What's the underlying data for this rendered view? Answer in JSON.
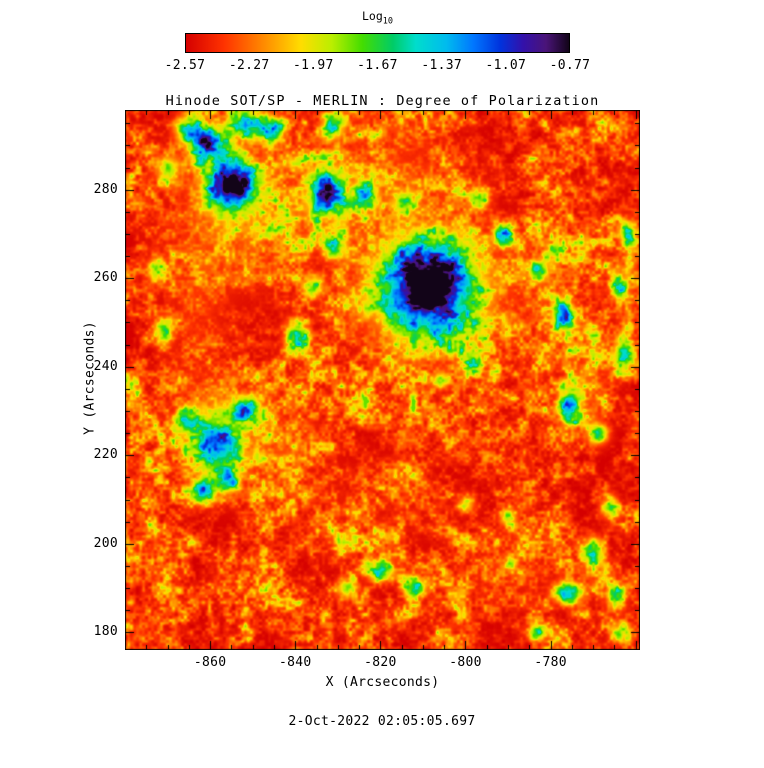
{
  "colorbar": {
    "label": "Log",
    "label_sub": "10",
    "ticks": [
      "-2.57",
      "-2.27",
      "-1.97",
      "-1.67",
      "-1.37",
      "-1.07",
      "-0.77"
    ]
  },
  "chart_data": {
    "type": "heatmap",
    "title": "Hinode SOT/SP - MERLIN : Degree of Polarization",
    "xlabel": "X (Arcseconds)",
    "ylabel": "Y (Arcseconds)",
    "xlim": [
      -880,
      -759
    ],
    "ylim": [
      176,
      298
    ],
    "x_major_ticks": [
      -860,
      -840,
      -820,
      -800,
      -780
    ],
    "y_major_ticks": [
      180,
      200,
      220,
      240,
      260,
      280
    ],
    "minor_tick_step": 5,
    "colorbar": {
      "title": "Log10",
      "range": [
        -2.57,
        -0.77
      ],
      "ticks": [
        -2.57,
        -2.27,
        -1.97,
        -1.67,
        -1.37,
        -1.07,
        -0.77
      ]
    },
    "value_note": "log10 degree of polarization: red = low (-2.57), dark purple/black = high (-0.77)",
    "colormap_stops": [
      [
        0.0,
        "#d50000"
      ],
      [
        0.1,
        "#ff3300"
      ],
      [
        0.2,
        "#ff8800"
      ],
      [
        0.3,
        "#ffdd00"
      ],
      [
        0.38,
        "#bbee00"
      ],
      [
        0.46,
        "#44dd00"
      ],
      [
        0.54,
        "#00cc66"
      ],
      [
        0.6,
        "#00ddcc"
      ],
      [
        0.68,
        "#00bbee"
      ],
      [
        0.75,
        "#0077ff"
      ],
      [
        0.82,
        "#0033dd"
      ],
      [
        0.88,
        "#3311aa"
      ],
      [
        0.94,
        "#4a1478"
      ],
      [
        1.0,
        "#120418"
      ]
    ],
    "features_format": [
      "x_arcsec",
      "y_arcsec",
      "rx_arcsec",
      "ry_arcsec",
      "strength"
    ],
    "features": [
      [
        -809,
        258,
        10.5,
        10,
        1.02
      ],
      [
        -809,
        257,
        14,
        13,
        0.32
      ],
      [
        -855,
        281,
        5,
        5.5,
        0.95
      ],
      [
        -856,
        282,
        8,
        8,
        0.28
      ],
      [
        -861,
        291,
        4.5,
        4,
        0.85
      ],
      [
        -852,
        295,
        4,
        3,
        0.55
      ],
      [
        -846,
        294,
        3.5,
        2.8,
        0.55
      ],
      [
        -833,
        279,
        3.2,
        4.2,
        0.88
      ],
      [
        -833,
        279,
        5.5,
        6.5,
        0.25
      ],
      [
        -831,
        295,
        3,
        3,
        0.6
      ],
      [
        -870,
        285,
        2.8,
        3.2,
        0.5
      ],
      [
        -866,
        294,
        3,
        3,
        0.5
      ],
      [
        -858,
        222,
        4.5,
        6.5,
        0.68
      ],
      [
        -852,
        230,
        3.5,
        3,
        0.55
      ],
      [
        -862,
        212,
        3,
        2.8,
        0.6
      ],
      [
        -866,
        228,
        2.5,
        3,
        0.5
      ],
      [
        -856,
        214,
        2.5,
        2.5,
        0.55
      ],
      [
        -859,
        224,
        8,
        11,
        0.2
      ],
      [
        -777,
        252,
        2.2,
        2.8,
        0.85
      ],
      [
        -776,
        231,
        2.6,
        3.4,
        0.78
      ],
      [
        -769,
        225,
        2.6,
        2.6,
        0.6
      ],
      [
        -763,
        243,
        2.2,
        4.5,
        0.55
      ],
      [
        -764,
        258,
        2.2,
        3,
        0.5
      ],
      [
        -772,
        236,
        6,
        9,
        0.16
      ],
      [
        -762,
        270,
        2,
        3,
        0.45
      ],
      [
        -820,
        194,
        3.5,
        2.6,
        0.5
      ],
      [
        -812,
        190,
        2.8,
        2.2,
        0.45
      ],
      [
        -828,
        190,
        2.5,
        2.2,
        0.45
      ],
      [
        -776,
        189,
        3.5,
        2.6,
        0.75
      ],
      [
        -770,
        198,
        2.6,
        3.4,
        0.6
      ],
      [
        -766,
        208,
        2.4,
        2.6,
        0.5
      ],
      [
        -765,
        188,
        2.2,
        3,
        0.5
      ],
      [
        -764,
        180,
        2.5,
        2.5,
        0.45
      ],
      [
        -790,
        206,
        2.2,
        2.2,
        0.42
      ],
      [
        -800,
        209,
        2,
        2,
        0.38
      ],
      [
        -783,
        180,
        2.6,
        2,
        0.5
      ],
      [
        -840,
        247,
        2.8,
        3.6,
        0.5
      ],
      [
        -836,
        258,
        2.6,
        2.6,
        0.45
      ],
      [
        -831,
        267,
        2.8,
        2.8,
        0.5
      ],
      [
        -824,
        279,
        2.8,
        3.2,
        0.55
      ],
      [
        -815,
        277,
        2.4,
        2.4,
        0.45
      ],
      [
        -797,
        278,
        2.6,
        2.6,
        0.45
      ],
      [
        -791,
        270,
        2.4,
        2.4,
        0.45
      ],
      [
        -783,
        262,
        2.4,
        2.4,
        0.5
      ],
      [
        -798,
        241,
        2.2,
        2.2,
        0.45
      ],
      [
        -806,
        237,
        2,
        2,
        0.38
      ],
      [
        -871,
        248,
        2.2,
        3.5,
        0.45
      ],
      [
        -873,
        262,
        2.2,
        3,
        0.4
      ],
      [
        -852,
        272,
        17,
        16,
        0.15
      ],
      [
        -846,
        224,
        13,
        14,
        0.11
      ],
      [
        -818,
        284,
        18,
        11,
        0.13
      ],
      [
        -808,
        258,
        19,
        17,
        0.11
      ],
      [
        -781,
        258,
        9,
        14,
        0.09
      ],
      [
        -863,
        250,
        8,
        24,
        0.09
      ],
      [
        -790,
        193,
        14,
        9,
        0.07
      ],
      [
        -761,
        265,
        3,
        12,
        0.12
      ],
      [
        -820,
        210,
        20,
        14,
        0.05
      ]
    ],
    "noise": {
      "seed": 1337,
      "octaves": [
        [
          48,
          0.22
        ],
        [
          24,
          0.2
        ],
        [
          12,
          0.2
        ],
        [
          6,
          0.2
        ],
        [
          3,
          0.18
        ]
      ],
      "base_scale": 0.43,
      "base_power": 2.0
    }
  },
  "footer": {
    "timestamp": "2-Oct-2022 02:05:05.697"
  }
}
